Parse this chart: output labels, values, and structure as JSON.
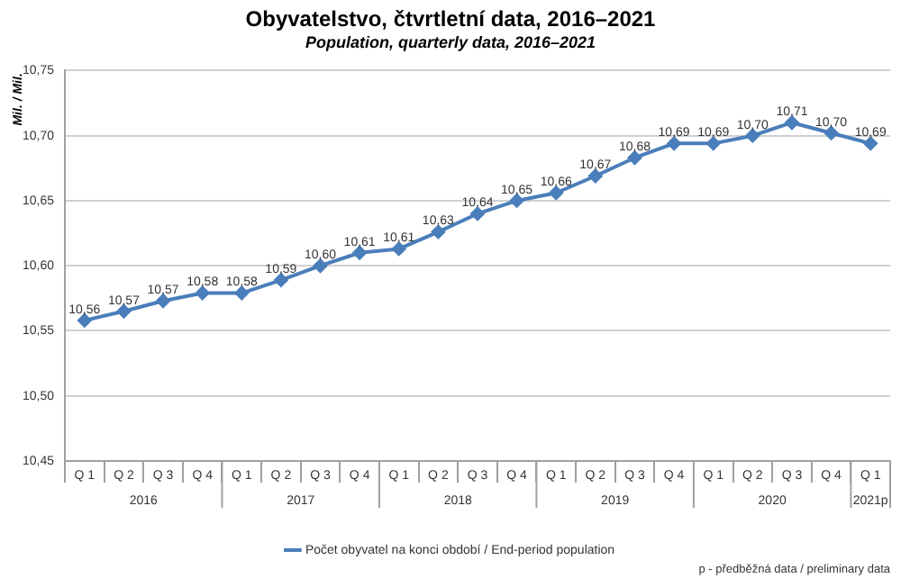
{
  "chart_data": {
    "type": "line",
    "title": "Obyvatelstvo, čtvrtletní data, 2016–2021",
    "subtitle": "Population, quarterly data, 2016–2021",
    "ylabel": "Mil. / Mil.",
    "categories": [
      "Q 1",
      "Q 2",
      "Q 3",
      "Q 4",
      "Q 1",
      "Q 2",
      "Q 3",
      "Q 4",
      "Q 1",
      "Q 2",
      "Q 3",
      "Q 4",
      "Q 1",
      "Q 2",
      "Q 3",
      "Q 4",
      "Q 1",
      "Q 2",
      "Q 3",
      "Q 4",
      "Q 1"
    ],
    "series": [
      {
        "name": "Počet obyvatel na konci období / End-period population",
        "color": "#4a7ebb",
        "values": [
          10.558,
          10.565,
          10.573,
          10.579,
          10.579,
          10.589,
          10.6,
          10.61,
          10.613,
          10.626,
          10.64,
          10.65,
          10.656,
          10.669,
          10.683,
          10.694,
          10.694,
          10.7,
          10.71,
          10.702,
          10.694
        ],
        "value_labels": [
          "10,56",
          "10,57",
          "10,57",
          "10,58",
          "10,58",
          "10,59",
          "10,60",
          "10,61",
          "10,61",
          "10,63",
          "10,64",
          "10,65",
          "10,66",
          "10,67",
          "10,68",
          "10,69",
          "10,69",
          "10,70",
          "10,71",
          "10,70",
          "10,69"
        ]
      }
    ],
    "ylim": [
      10.45,
      10.75
    ],
    "yticks": [
      {
        "value": 10.45,
        "label": "10,45"
      },
      {
        "value": 10.5,
        "label": "10,50"
      },
      {
        "value": 10.55,
        "label": "10,55"
      },
      {
        "value": 10.6,
        "label": "10,60"
      },
      {
        "value": 10.65,
        "label": "10,65"
      },
      {
        "value": 10.7,
        "label": "10,70"
      },
      {
        "value": 10.75,
        "label": "10,75"
      }
    ],
    "annotations": [
      "2016",
      "2017",
      "2018",
      "2019",
      "2020",
      "2021p",
      "p - předběžná data / preliminary data"
    ],
    "grid": "y",
    "legend": "bottom",
    "marker": "diamond",
    "line_style": "solid"
  }
}
